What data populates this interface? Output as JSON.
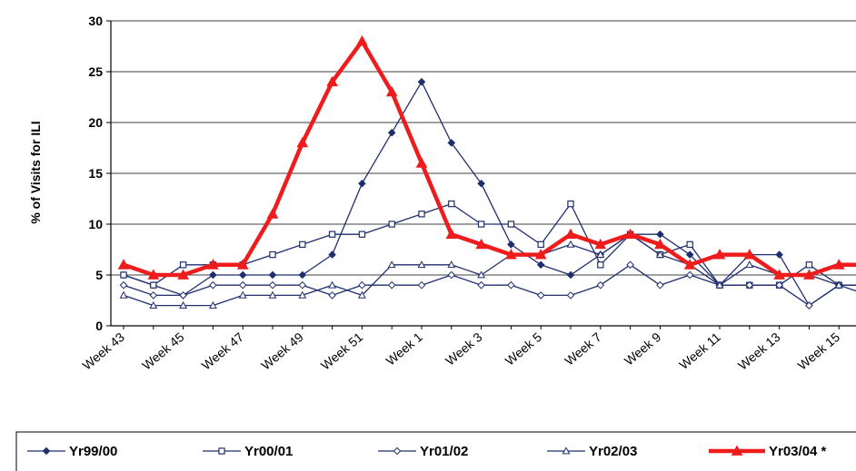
{
  "chart_data": {
    "type": "line",
    "ylabel": "% of Visits for ILI",
    "xlabel": "",
    "ylim": [
      0,
      30
    ],
    "yticks": [
      0,
      5,
      10,
      15,
      20,
      25,
      30
    ],
    "grid": "horizontal",
    "legend_position": "bottom",
    "categories": [
      "Week 43",
      "Week 44",
      "Week 45",
      "Week 46",
      "Week 47",
      "Week 48",
      "Week 49",
      "Week 50",
      "Week 51",
      "Week 52",
      "Week 1",
      "Week 2",
      "Week 3",
      "Week 4",
      "Week 5",
      "Week 6",
      "Week 7",
      "Week 8",
      "Week 9",
      "Week 10",
      "Week 11",
      "Week 12",
      "Week 13",
      "Week 14",
      "Week 15",
      "Week 16"
    ],
    "tick_labels": [
      "Week 43",
      "Week 45",
      "Week 47",
      "Week 49",
      "Week 51",
      "Week 1",
      "Week 3",
      "Week 5",
      "Week 7",
      "Week 9",
      "Week 11",
      "Week 13",
      "Week 15"
    ],
    "series": [
      {
        "name": "Yr99/00",
        "color": "#1f2f6e",
        "marker": "diamond-filled",
        "values": [
          5,
          4,
          3,
          5,
          5,
          5,
          5,
          7,
          14,
          19,
          24,
          18,
          14,
          8,
          6,
          5,
          7,
          9,
          9,
          7,
          4,
          7,
          7,
          2,
          4,
          4
        ]
      },
      {
        "name": "Yr00/01",
        "color": "#1f2f6e",
        "marker": "square-open",
        "values": [
          5,
          4,
          6,
          6,
          6,
          7,
          8,
          9,
          9,
          10,
          11,
          12,
          10,
          10,
          8,
          12,
          6,
          9,
          7,
          8,
          4,
          4,
          4,
          6,
          4,
          4
        ]
      },
      {
        "name": "Yr01/02",
        "color": "#1f2f6e",
        "marker": "diamond-open",
        "values": [
          4,
          3,
          3,
          4,
          4,
          4,
          4,
          3,
          4,
          4,
          4,
          5,
          4,
          4,
          3,
          3,
          4,
          6,
          4,
          5,
          4,
          4,
          4,
          2,
          4,
          3
        ]
      },
      {
        "name": "Yr02/03",
        "color": "#1f2f6e",
        "marker": "triangle-open",
        "values": [
          3,
          2,
          2,
          2,
          3,
          3,
          3,
          4,
          3,
          6,
          6,
          6,
          5,
          7,
          7,
          8,
          7,
          9,
          7,
          6,
          4,
          6,
          5,
          5,
          4,
          4
        ]
      },
      {
        "name": "Yr03/04 *",
        "color": "#ee1c1c",
        "marker": "triangle-filled",
        "values": [
          6,
          5,
          5,
          6,
          6,
          11,
          18,
          24,
          28,
          23,
          16,
          9,
          8,
          7,
          7,
          9,
          8,
          9,
          8,
          6,
          7,
          7,
          5,
          5,
          6,
          6
        ]
      }
    ]
  }
}
